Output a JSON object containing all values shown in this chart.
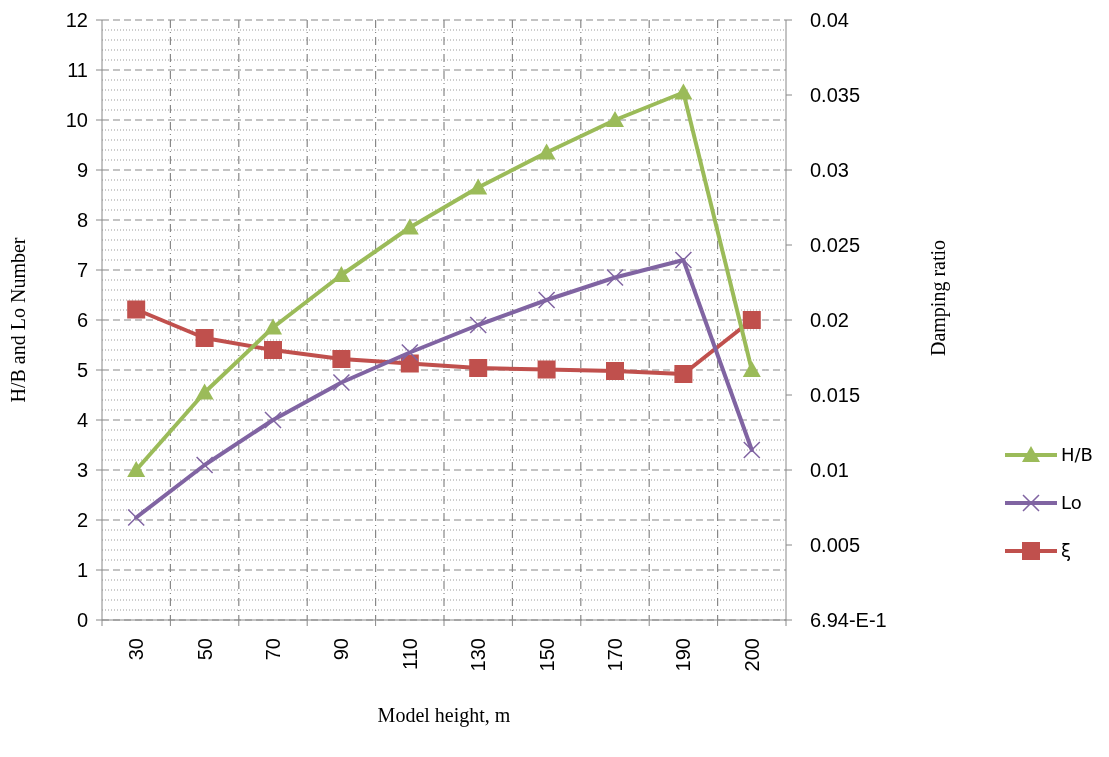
{
  "chart_data": {
    "type": "line",
    "xlabel": "Model height, m",
    "ylabel": "H/B and Lo Number",
    "y2label": "Damping ratio",
    "categories": [
      "30",
      "50",
      "70",
      "90",
      "110",
      "130",
      "150",
      "170",
      "190",
      "200"
    ],
    "ylim": [
      0,
      12
    ],
    "yticks": [
      0,
      1,
      2,
      3,
      4,
      5,
      6,
      7,
      8,
      9,
      10,
      11,
      12
    ],
    "y2lim": [
      0,
      0.04
    ],
    "y2ticks": [
      {
        "value": 0,
        "label": "6.94-E-1"
      },
      0.005,
      0.01,
      0.015,
      0.02,
      0.025,
      0.03,
      0.035,
      0.04
    ],
    "grid": true,
    "legend": "right",
    "line_style": "solid",
    "series": [
      {
        "name": "H/B",
        "color": "#9bbb59",
        "marker": "triangle",
        "values": [
          3,
          4.55,
          5.85,
          6.9,
          7.85,
          8.65,
          9.35,
          10,
          10.55,
          5
        ]
      },
      {
        "name": "Lo",
        "color": "#8064a2",
        "marker": "cross",
        "values": [
          2.05,
          3.1,
          4,
          4.75,
          5.35,
          5.9,
          6.4,
          6.85,
          7.2,
          3.4
        ]
      },
      {
        "name": "ξ",
        "color": "#c0504d",
        "marker": "square",
        "axis": "y2",
        "values": [
          0.0207,
          0.0188,
          0.018,
          0.0174,
          0.0171,
          0.0168,
          0.0167,
          0.0166,
          0.0164,
          0.02
        ]
      }
    ]
  }
}
